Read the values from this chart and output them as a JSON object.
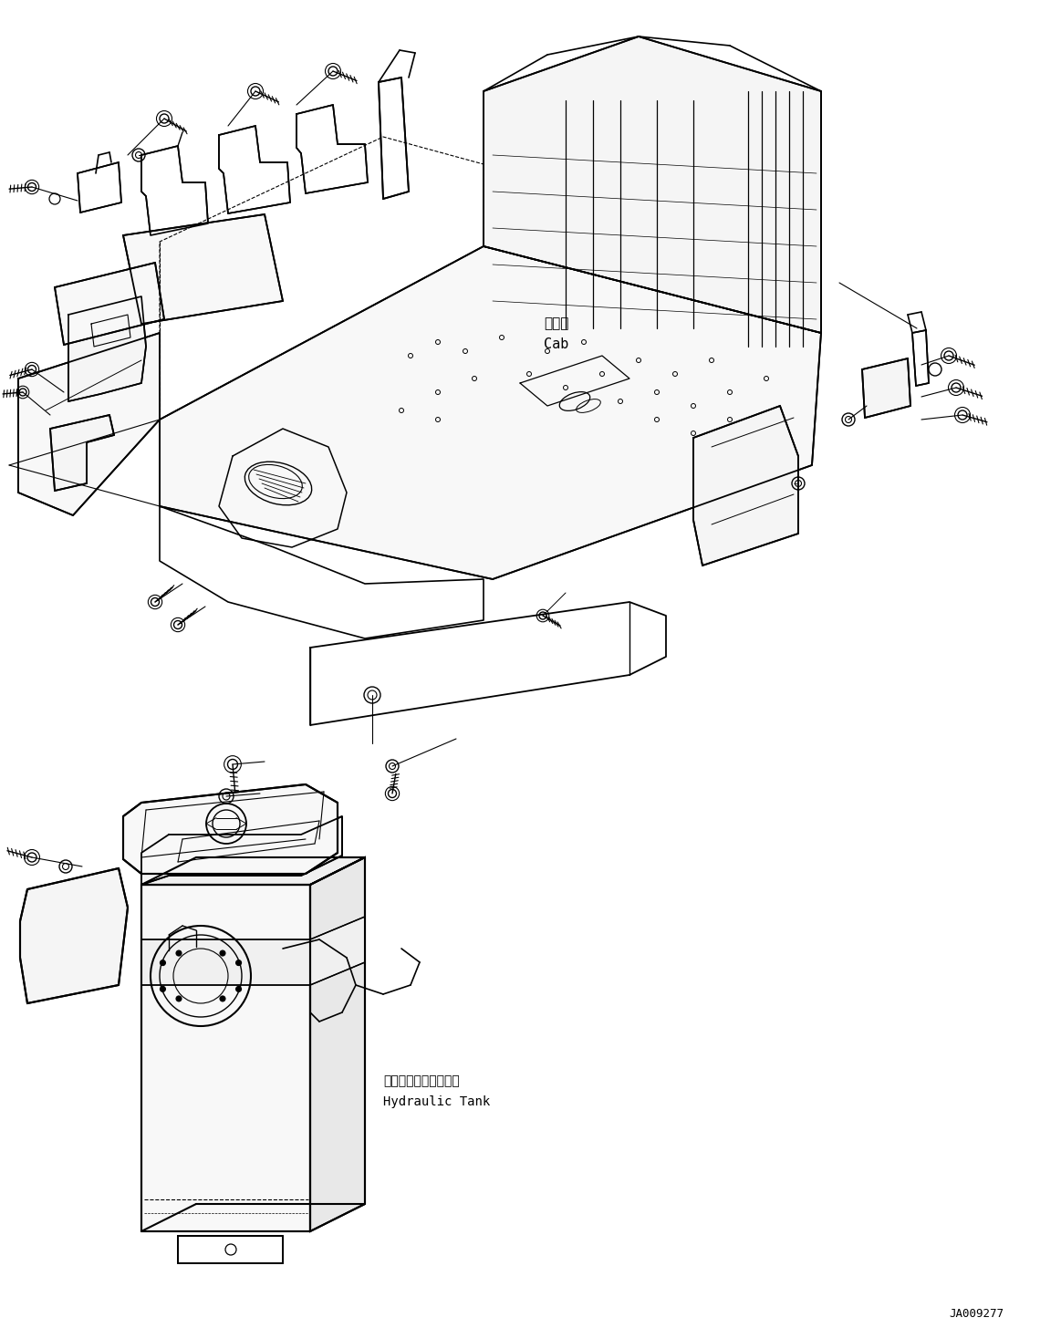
{
  "background_color": "#ffffff",
  "line_color": "#000000",
  "fig_width": 11.63,
  "fig_height": 14.56,
  "dpi": 100,
  "cab_label_jp": "キャブ",
  "cab_label_en": "Cab",
  "tank_label_jp": "ハイドロリックタンク",
  "tank_label_en": "Hydraulic Tank",
  "part_number": "JA009277",
  "text_color": "#000000"
}
